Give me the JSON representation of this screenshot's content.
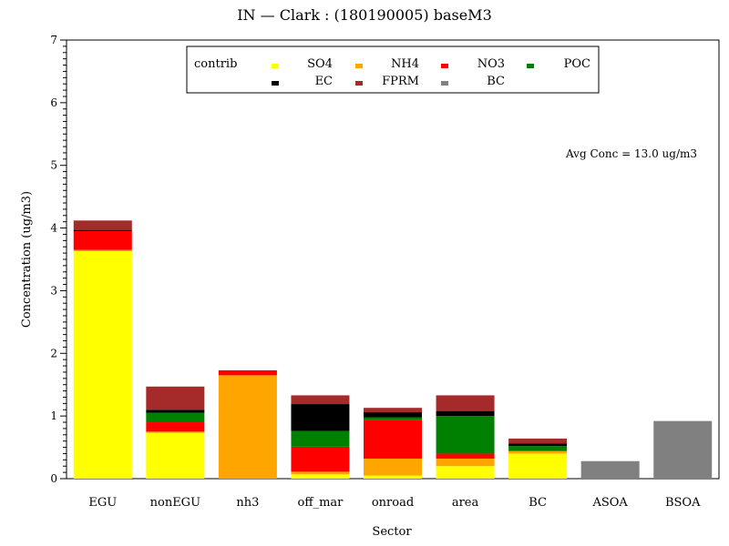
{
  "chart_data": {
    "type": "bar",
    "stacked": true,
    "title": "IN  —  Clark  :  (180190005)  baseM3",
    "xlabel": "Sector",
    "ylabel": "Concentration  (ug/m3)",
    "ylim": [
      0,
      7
    ],
    "yticks": [
      "0",
      "1",
      "2",
      "3",
      "4",
      "5",
      "6",
      "7"
    ],
    "categories": [
      "EGU",
      "nonEGU",
      "nh3",
      "off_mar",
      "onroad",
      "area",
      "BC",
      "ASOA",
      "BSOA"
    ],
    "series": [
      {
        "name": "SO4",
        "color": "#ffff00",
        "values": [
          3.63,
          0.73,
          0.0,
          0.07,
          0.05,
          0.2,
          0.4,
          0.0,
          0.0
        ]
      },
      {
        "name": "NH4",
        "color": "#ffa500",
        "values": [
          0.02,
          0.02,
          1.65,
          0.04,
          0.27,
          0.12,
          0.04,
          0.0,
          0.0
        ]
      },
      {
        "name": "NO3",
        "color": "#ff0000",
        "values": [
          0.3,
          0.15,
          0.08,
          0.4,
          0.62,
          0.08,
          0.01,
          0.0,
          0.0
        ]
      },
      {
        "name": "POC",
        "color": "#008000",
        "values": [
          0.0,
          0.15,
          0.0,
          0.25,
          0.04,
          0.6,
          0.07,
          0.0,
          0.0
        ]
      },
      {
        "name": "EC",
        "color": "#000000",
        "values": [
          0.02,
          0.05,
          0.0,
          0.43,
          0.08,
          0.08,
          0.04,
          0.0,
          0.0
        ]
      },
      {
        "name": "FPRM",
        "color": "#a52a2a",
        "values": [
          0.15,
          0.37,
          0.0,
          0.14,
          0.07,
          0.25,
          0.08,
          0.0,
          0.0
        ]
      },
      {
        "name": "BC",
        "color": "#808080",
        "values": [
          0.0,
          0.0,
          0.0,
          0.0,
          0.0,
          0.0,
          0.0,
          0.28,
          0.92
        ]
      }
    ],
    "legend": {
      "title": "contrib",
      "placement": "top-center"
    },
    "annotation": "Avg Conc  =  13.0  ug/m3",
    "grid": false
  }
}
